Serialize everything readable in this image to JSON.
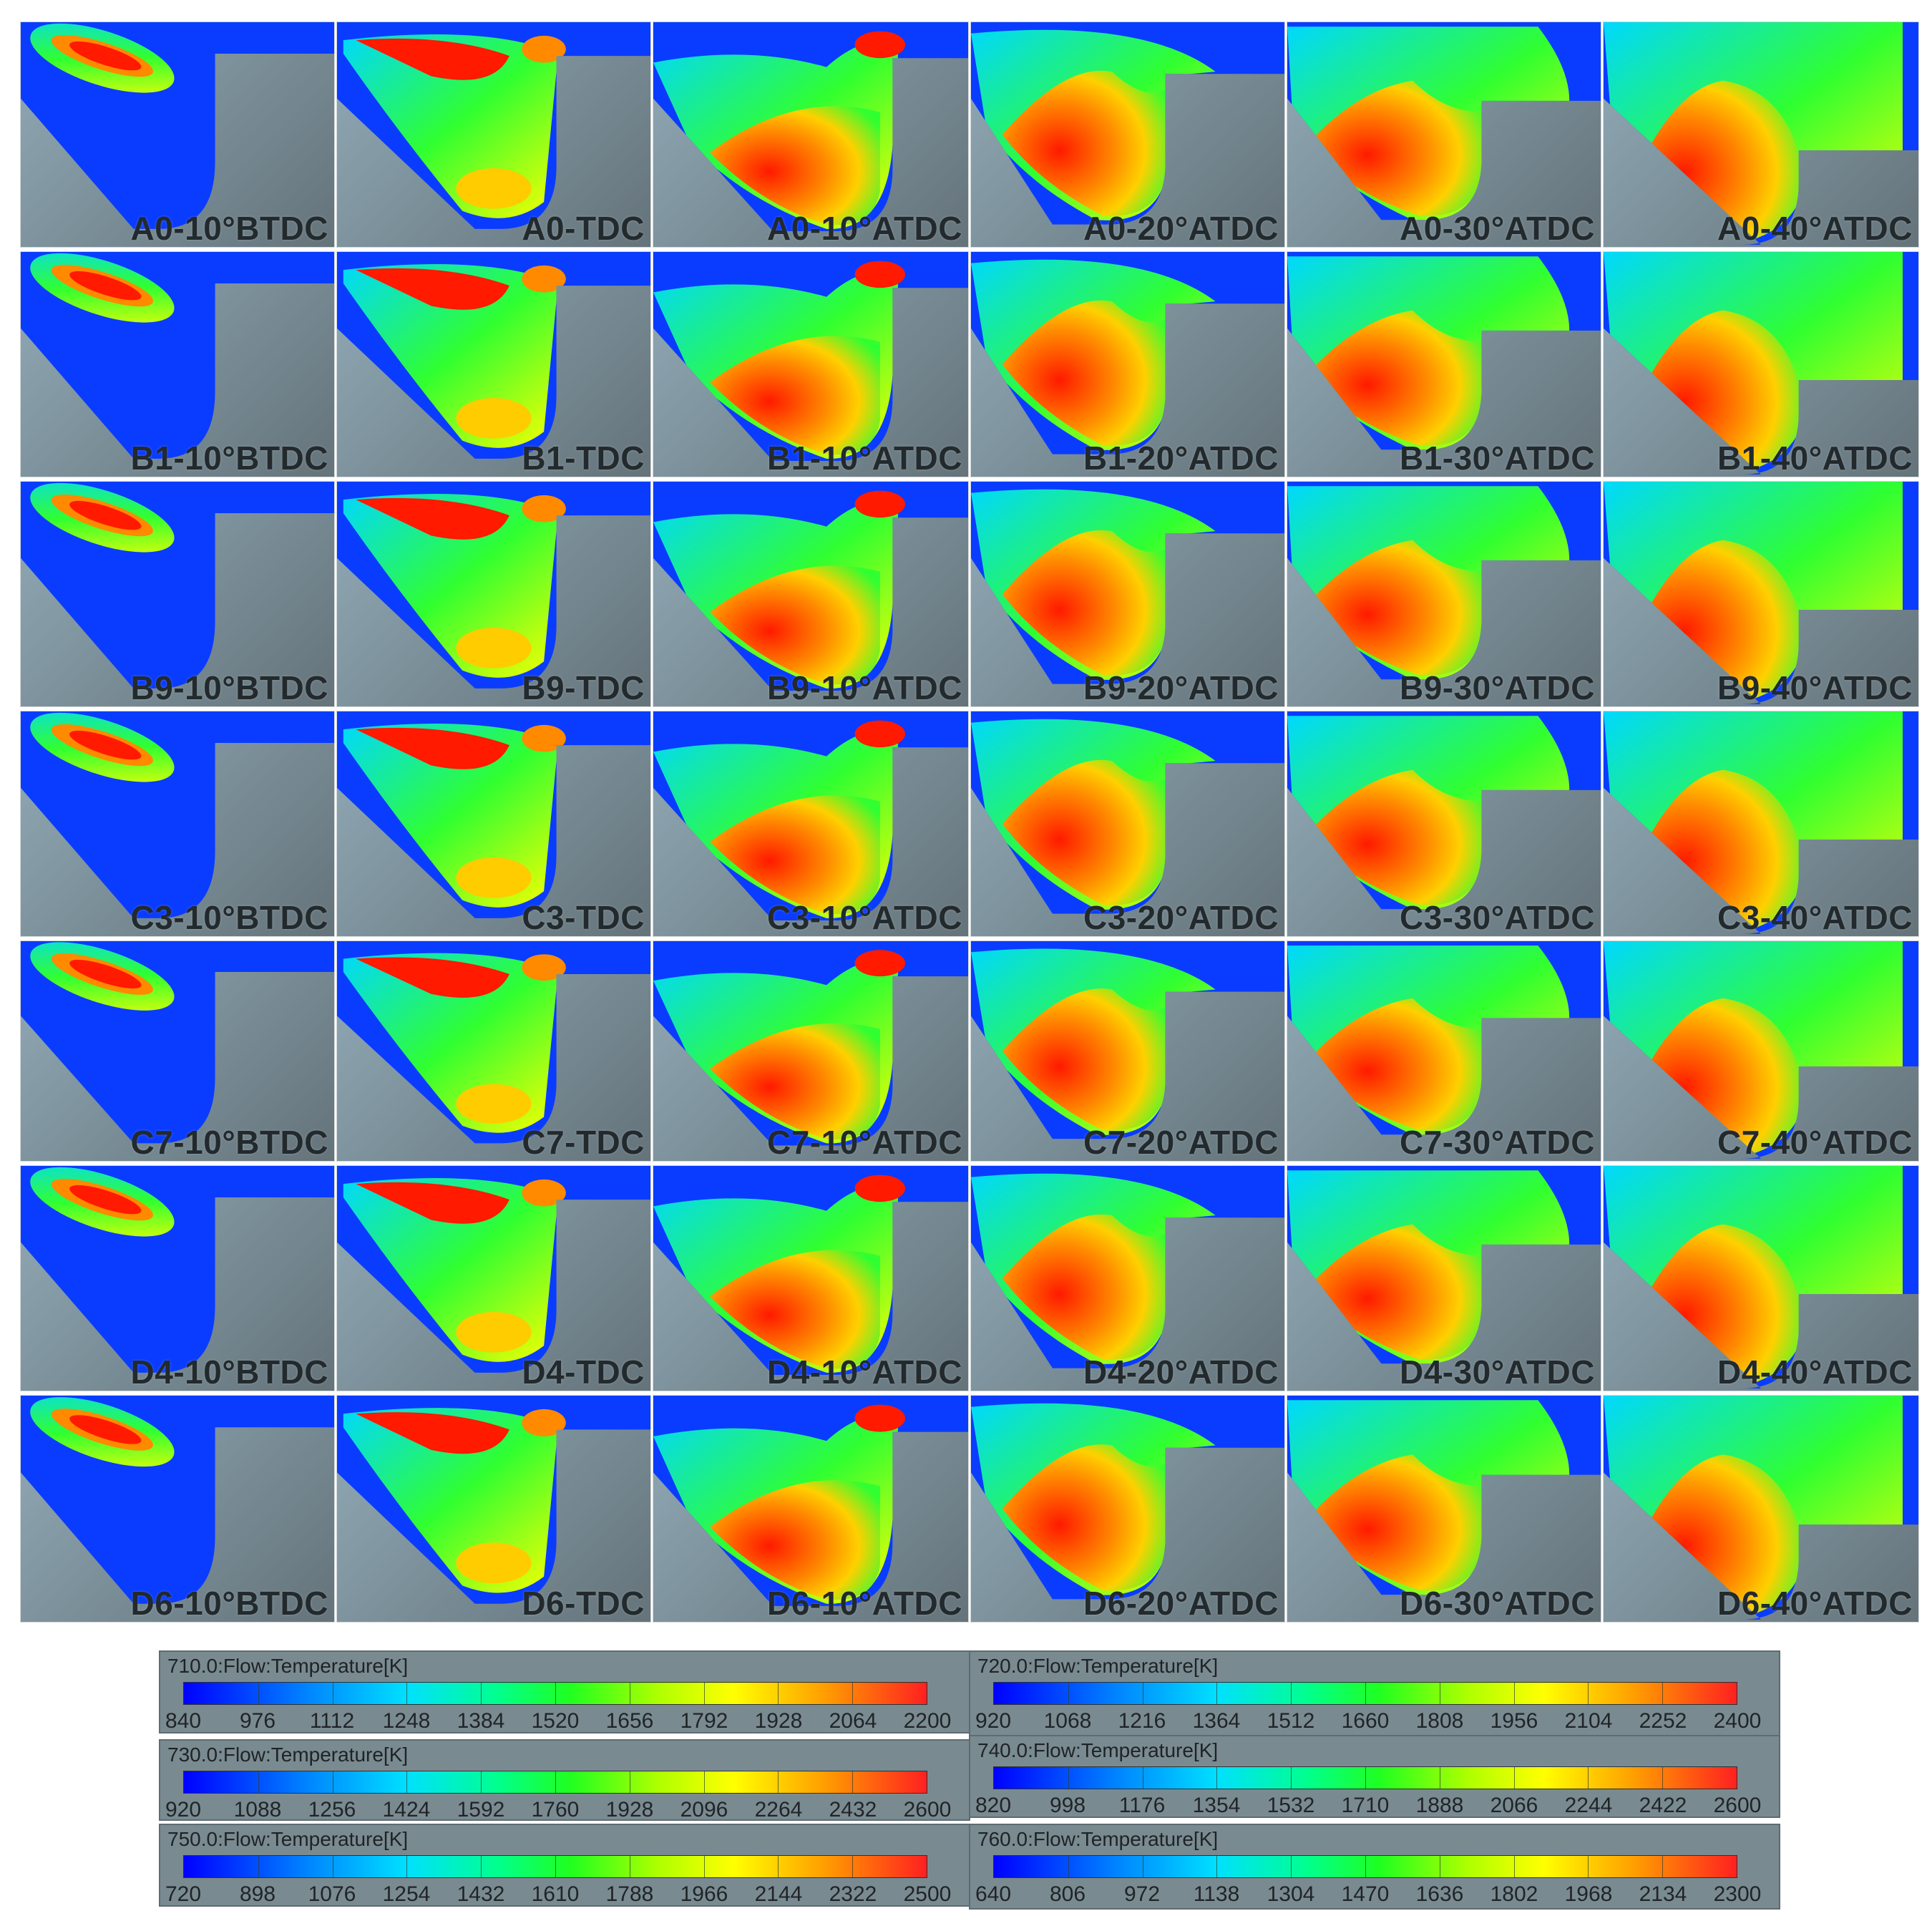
{
  "grid": {
    "timings": [
      "10°BTDC",
      "TDC",
      "10°ATDC",
      "20°ATDC",
      "30°ATDC",
      "40°ATDC"
    ],
    "rows": [
      {
        "case": "A0",
        "labels": [
          "A0-10°BTDC",
          "A0-TDC",
          "A0-10°ATDC",
          "A0-20°ATDC",
          "A0-30°ATDC",
          "A0-40°ATDC"
        ]
      },
      {
        "case": "B1",
        "labels": [
          "B1-10°BTDC",
          "B1-TDC",
          "B1-10°ATDC",
          "B1-20°ATDC",
          "B1-30°ATDC",
          "B1-40°ATDC"
        ]
      },
      {
        "case": "B9",
        "labels": [
          "B9-10°BTDC",
          "B9-TDC",
          "B9-10°ATDC",
          "B9-20°ATDC",
          "B9-30°ATDC",
          "B9-40°ATDC"
        ]
      },
      {
        "case": "C3",
        "labels": [
          "C3-10°BTDC",
          "C3-TDC",
          "C3-10°ATDC",
          "C3-20°ATDC",
          "C3-30°ATDC",
          "C3-40°ATDC"
        ]
      },
      {
        "case": "C7",
        "labels": [
          "C7-10°BTDC",
          "C7-TDC",
          "C7-10°ATDC",
          "C7-20°ATDC",
          "C7-30°ATDC",
          "C7-40°ATDC"
        ]
      },
      {
        "case": "D4",
        "labels": [
          "D4-10°BTDC",
          "D4-TDC",
          "D4-10°ATDC",
          "D4-20°ATDC",
          "D4-30°ATDC",
          "D4-40°ATDC"
        ]
      },
      {
        "case": "D6",
        "labels": [
          "D6-10°BTDC",
          "D6-TDC",
          "D6-10°ATDC",
          "D6-20°ATDC",
          "D6-30°ATDC",
          "D6-40°ATDC"
        ]
      }
    ]
  },
  "legends": [
    {
      "title": "710.0:Flow:Temperature[K]",
      "values": [
        "840",
        "976",
        "1112",
        "1248",
        "1384",
        "1520",
        "1656",
        "1792",
        "1928",
        "2064",
        "2200"
      ]
    },
    {
      "title": "720.0:Flow:Temperature[K]",
      "values": [
        "920",
        "1068",
        "1216",
        "1364",
        "1512",
        "1660",
        "1808",
        "1956",
        "2104",
        "2252",
        "2400"
      ]
    },
    {
      "title": "730.0:Flow:Temperature[K]",
      "values": [
        "920",
        "1088",
        "1256",
        "1424",
        "1592",
        "1760",
        "1928",
        "2096",
        "2264",
        "2432",
        "2600"
      ]
    },
    {
      "title": "740.0:Flow:Temperature[K]",
      "values": [
        "820",
        "998",
        "1176",
        "1354",
        "1532",
        "1710",
        "1888",
        "2066",
        "2244",
        "2422",
        "2600"
      ]
    },
    {
      "title": "750.0:Flow:Temperature[K]",
      "values": [
        "720",
        "898",
        "1076",
        "1254",
        "1432",
        "1610",
        "1788",
        "1966",
        "2144",
        "2322",
        "2500"
      ]
    },
    {
      "title": "760.0:Flow:Temperature[K]",
      "values": [
        "640",
        "806",
        "972",
        "1138",
        "1304",
        "1470",
        "1636",
        "1802",
        "1968",
        "2134",
        "2300"
      ]
    }
  ],
  "colors": {
    "blue": "#0a3cff",
    "cyan": "#00d8ff",
    "green": "#30ff30",
    "yellow": "#ffff00",
    "orange": "#ff8a00",
    "red": "#ff1a00"
  }
}
